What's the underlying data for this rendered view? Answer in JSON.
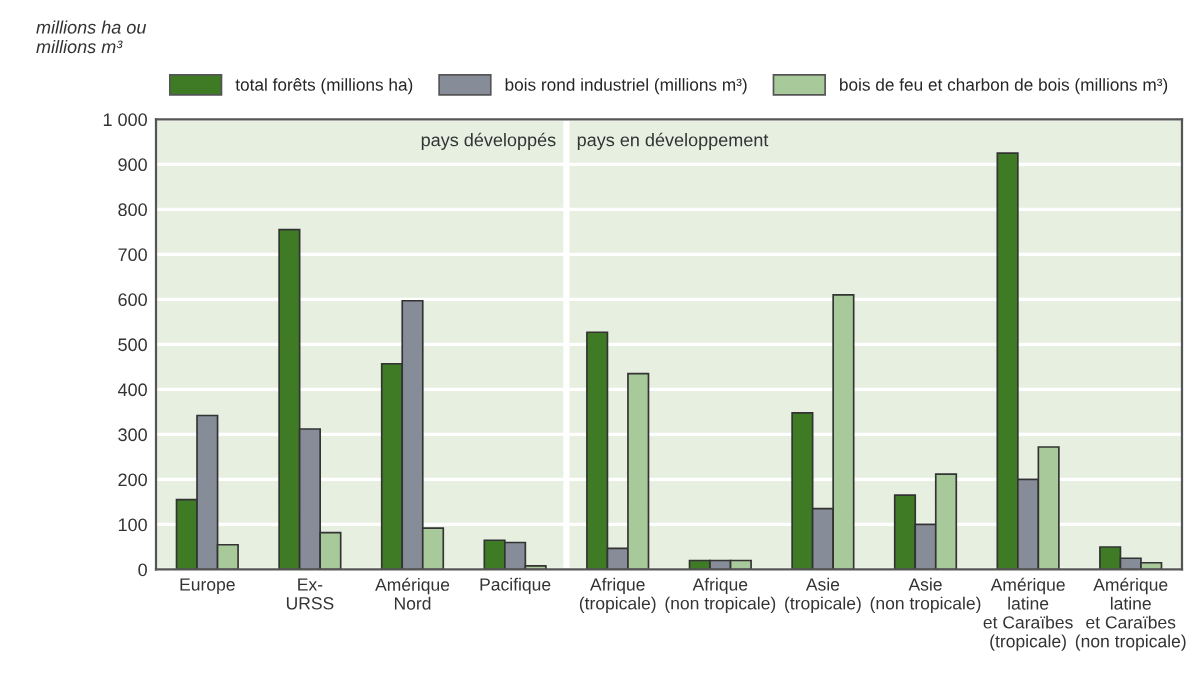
{
  "chart_data": {
    "type": "bar",
    "ylabel": "millions ha ou millions m³",
    "categories": [
      "Europe",
      "Ex-\nURSS",
      "Amérique\nNord",
      "Pacifique",
      "Afrique\n(tropicale)",
      "Afrique\n(non tropicale)",
      "Asie\n(tropicale)",
      "Asie\n(non tropicale)",
      "Amérique\nlatine\net Caraïbes\n(tropicale)",
      "Amérique\nlatine\net Caraïbes\n(non tropicale)"
    ],
    "series": [
      {
        "name": "total forêts (millions ha)",
        "color": "#3f7a24",
        "values": [
          155,
          755,
          457,
          65,
          527,
          20,
          348,
          165,
          925,
          50
        ]
      },
      {
        "name": "bois rond industriel (millions m³)",
        "color": "#878c99",
        "values": [
          342,
          312,
          597,
          60,
          47,
          20,
          135,
          100,
          200,
          25
        ]
      },
      {
        "name": "bois de feu et charbon de bois (millions m³)",
        "color": "#a8c99a",
        "values": [
          55,
          82,
          92,
          8,
          435,
          20,
          610,
          212,
          272,
          15
        ]
      }
    ],
    "annotations": [
      "pays développés",
      "pays en développement"
    ],
    "ylim": [
      0,
      1000
    ],
    "yticks": [
      0,
      100,
      200,
      300,
      400,
      500,
      600,
      700,
      800,
      900,
      {
        "value": 1000,
        "label": "1 000"
      }
    ],
    "grid": "y",
    "legend": "top"
  }
}
